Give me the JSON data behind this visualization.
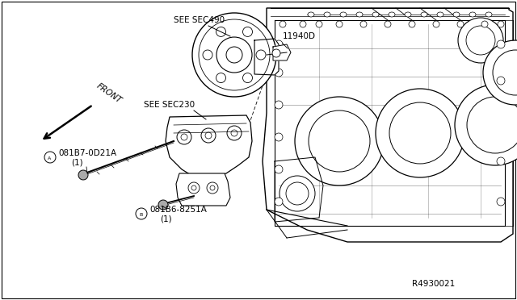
{
  "bg_color": "#ffffff",
  "border_color": "#000000",
  "fig_width": 6.4,
  "fig_height": 3.72,
  "dpi": 100,
  "ref_code": "R4930021",
  "label_see_sec490": "SEE SEC490",
  "label_11940d": "11940D",
  "label_see_sec230": "SEE SEC230",
  "label_front": "FRONT",
  "label_partA": "081B7-0D21A",
  "label_partA2": "(1)",
  "label_partB": "081B6-8251A",
  "label_partB2": "(1)",
  "lw": 0.7
}
